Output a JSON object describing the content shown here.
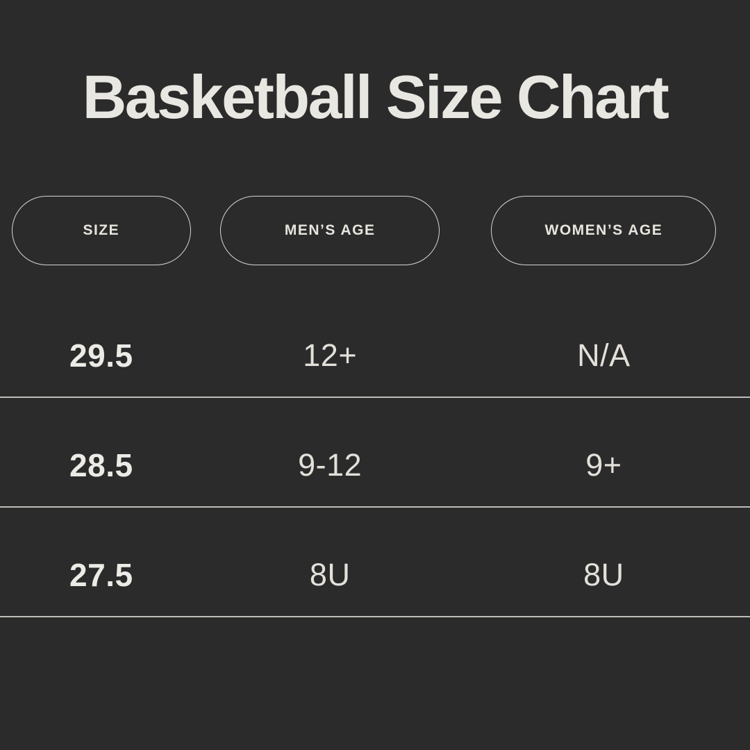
{
  "title": "Basketball Size Chart",
  "colors": {
    "background": "#2b2b2b",
    "text": "#e9e7e1",
    "pill_border": "#d9d6d0",
    "divider": "#dbd8d2"
  },
  "chart_data": {
    "type": "table",
    "title": "Basketball Size Chart",
    "columns": [
      "SIZE",
      "MEN’S AGE",
      "WOMEN’S AGE"
    ],
    "rows": [
      [
        "29.5",
        "12+",
        "N/A"
      ],
      [
        "28.5",
        "9-12",
        "9+"
      ],
      [
        "27.5",
        "8U",
        "8U"
      ]
    ],
    "layout": {
      "header_style": "outlined-pill",
      "row_divider": "full-width-line",
      "theme": "dark"
    }
  }
}
